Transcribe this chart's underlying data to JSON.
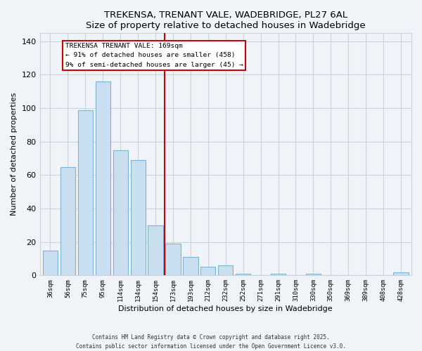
{
  "title": "TREKENSA, TRENANT VALE, WADEBRIDGE, PL27 6AL",
  "subtitle": "Size of property relative to detached houses in Wadebridge",
  "xlabel": "Distribution of detached houses by size in Wadebridge",
  "ylabel": "Number of detached properties",
  "bar_labels": [
    "36sqm",
    "56sqm",
    "75sqm",
    "95sqm",
    "114sqm",
    "134sqm",
    "154sqm",
    "173sqm",
    "193sqm",
    "212sqm",
    "232sqm",
    "252sqm",
    "271sqm",
    "291sqm",
    "310sqm",
    "330sqm",
    "350sqm",
    "369sqm",
    "389sqm",
    "408sqm",
    "428sqm"
  ],
  "bar_values": [
    15,
    65,
    99,
    116,
    75,
    69,
    30,
    19,
    11,
    5,
    6,
    1,
    0,
    1,
    0,
    1,
    0,
    0,
    0,
    0,
    2
  ],
  "bar_color": "#c9dff0",
  "bar_edge_color": "#7fb3d3",
  "vline_x": 7,
  "vline_color": "#cc0000",
  "annotation_title": "TREKENSA TRENANT VALE: 169sqm",
  "annotation_line1": "← 91% of detached houses are smaller (458)",
  "annotation_line2": "9% of semi-detached houses are larger (45) →",
  "annotation_box_color": "#ffffff",
  "annotation_box_edge": "#cc0000",
  "ylim": [
    0,
    145
  ],
  "yticks": [
    0,
    20,
    40,
    60,
    80,
    100,
    120,
    140
  ],
  "footer1": "Contains HM Land Registry data © Crown copyright and database right 2025.",
  "footer2": "Contains public sector information licensed under the Open Government Licence v3.0.",
  "bg_color": "#f0f4f8",
  "grid_color": "#c8d4de"
}
